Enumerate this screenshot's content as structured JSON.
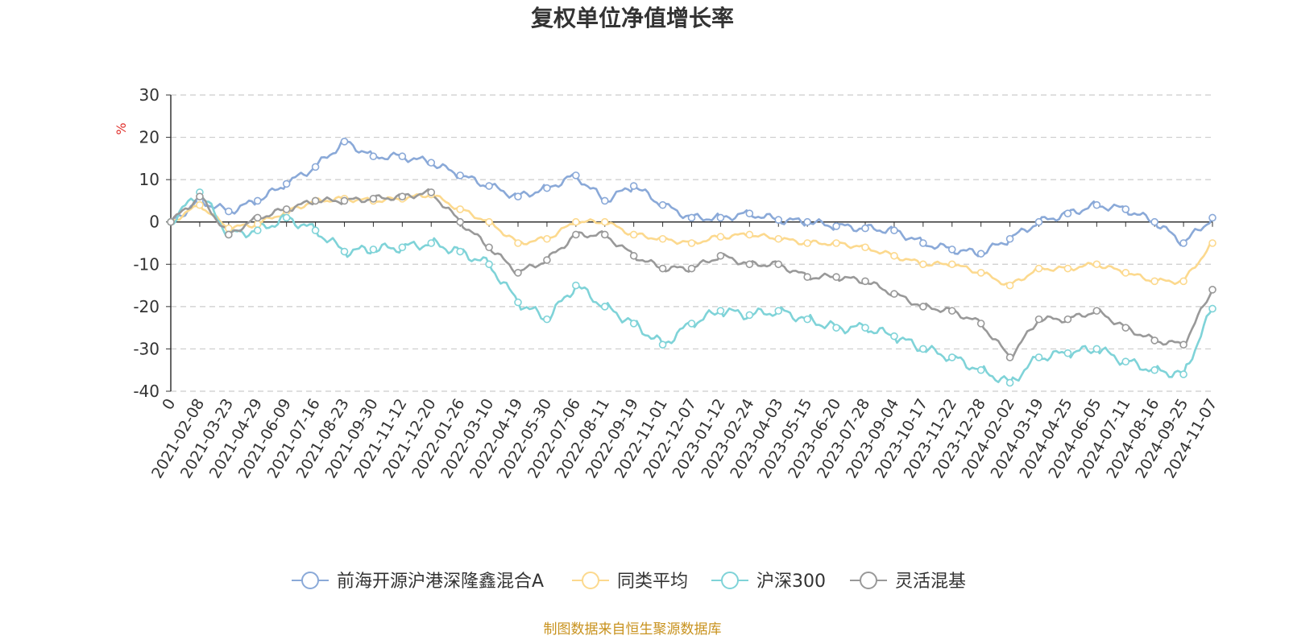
{
  "chart_data": {
    "type": "line",
    "title": "复权单位净值增长率",
    "ylabel": "%",
    "ylim": [
      -40,
      30
    ],
    "yticks": [
      30,
      20,
      10,
      0,
      -10,
      -20,
      -30,
      -40
    ],
    "ytick_labels": [
      "30",
      "20",
      "10",
      "0",
      "-10",
      "-20",
      "-30",
      "-40"
    ],
    "grid": true,
    "legend_position": "bottom-center",
    "source": "制图数据来自恒生聚源数据库",
    "x": [
      "0",
      "2021-02-08",
      "2021-03-23",
      "2021-04-29",
      "2021-06-09",
      "2021-07-16",
      "2021-08-23",
      "2021-09-30",
      "2021-11-12",
      "2021-12-20",
      "2022-01-26",
      "2022-03-10",
      "2022-04-19",
      "2022-05-30",
      "2022-07-06",
      "2022-08-11",
      "2022-09-19",
      "2022-11-01",
      "2022-12-07",
      "2023-01-12",
      "2023-02-24",
      "2023-04-03",
      "2023-05-15",
      "2023-06-20",
      "2023-07-28",
      "2023-09-04",
      "2023-10-17",
      "2023-11-22",
      "2023-12-28",
      "2024-02-02",
      "2024-03-19",
      "2024-04-25",
      "2024-06-05",
      "2024-07-11",
      "2024-08-16",
      "2024-09-25",
      "2024-11-07"
    ],
    "series": [
      {
        "name": "前海开源沪港深隆鑫混合A",
        "color": "#8aa9d8",
        "values": [
          0,
          5,
          2.5,
          5,
          9,
          13,
          19,
          15.5,
          15.5,
          14,
          11,
          8.5,
          6,
          8,
          11,
          5,
          8.5,
          4,
          1,
          1,
          2,
          0.5,
          0,
          -1,
          -1.5,
          -2,
          -5,
          -6.5,
          -7.5,
          -4,
          0,
          2,
          4,
          3,
          0,
          -5,
          1
        ]
      },
      {
        "name": "同类平均",
        "color": "#fcd98e",
        "values": [
          0,
          4,
          -1.5,
          -0.5,
          2.5,
          5,
          5.5,
          5,
          5.5,
          6.5,
          3,
          0,
          -5,
          -4,
          0,
          0,
          -3,
          -4,
          -5,
          -3.5,
          -3,
          -4,
          -5,
          -5,
          -6,
          -8,
          -10,
          -10,
          -12,
          -15,
          -11,
          -11,
          -10,
          -12,
          -14,
          -14,
          -5
        ]
      },
      {
        "name": "沪深300",
        "color": "#7fd3d8",
        "values": [
          0,
          7,
          -3,
          -2,
          1,
          -2,
          -7,
          -6.5,
          -6,
          -5,
          -7,
          -10,
          -19,
          -23,
          -15,
          -20,
          -24,
          -29,
          -24,
          -21,
          -22,
          -21,
          -23,
          -25,
          -25,
          -27,
          -30,
          -32,
          -35,
          -38,
          -32,
          -31,
          -30,
          -33,
          -35,
          -36,
          -20.5
        ]
      },
      {
        "name": "灵活混基",
        "color": "#999999",
        "values": [
          0,
          6,
          -3,
          1,
          3,
          5,
          5,
          5.5,
          6,
          7,
          0,
          -6,
          -12,
          -9,
          -3,
          -3,
          -8,
          -11,
          -11,
          -8,
          -10,
          -10,
          -13,
          -13,
          -14,
          -17,
          -20,
          -21,
          -24,
          -32,
          -23,
          -23,
          -21,
          -25,
          -28,
          -29,
          -16
        ]
      }
    ]
  }
}
